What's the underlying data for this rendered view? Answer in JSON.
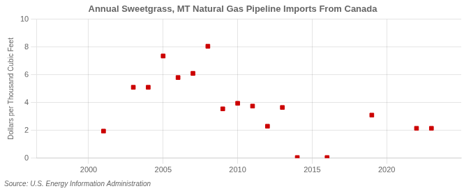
{
  "chart_data": {
    "type": "scatter",
    "title": "Annual Sweetgrass, MT Natural Gas Pipeline Imports From Canada",
    "y_label": "Dollars per Thousand Cubic Feet",
    "annotations": [
      "Source: U.S. Energy Information Administration"
    ],
    "x": [
      2001,
      2003,
      2004,
      2005,
      2006,
      2007,
      2008,
      2009,
      2010,
      2011,
      2012,
      2013,
      2014,
      2016,
      2019,
      2022,
      2023
    ],
    "values": [
      1.95,
      5.1,
      5.1,
      7.35,
      5.8,
      6.1,
      8.05,
      3.55,
      3.95,
      3.75,
      2.3,
      3.65,
      0.05,
      0.05,
      3.1,
      2.15,
      2.15
    ],
    "color": "#cc0000",
    "marker": "square",
    "xlim": [
      1996.5,
      2025
    ],
    "ylim": [
      0,
      10
    ],
    "xticks": [
      2000,
      2005,
      2010,
      2015,
      2020
    ],
    "yticks": [
      0,
      2,
      4,
      6,
      8,
      10
    ],
    "grid": true
  }
}
